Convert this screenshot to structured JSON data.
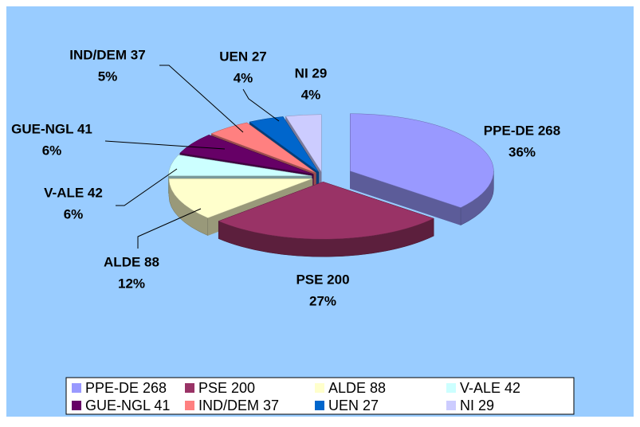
{
  "chart_data": {
    "type": "pie",
    "categories": [
      "PPE-DE 268",
      "PSE 200",
      "ALDE 88",
      "V-ALE 42",
      "GUE-NGL 41",
      "IND/DEM 37",
      "UEN 27",
      "NI 29"
    ],
    "values": [
      36,
      27,
      12,
      6,
      6,
      5,
      4,
      4
    ],
    "value_labels": [
      "36%",
      "27%",
      "12%",
      "6%",
      "6%",
      "5%",
      "4%",
      "4%"
    ],
    "colors": [
      "#9999ff",
      "#993366",
      "#ffffcc",
      "#ccffff",
      "#660066",
      "#ff8080",
      "#0066cc",
      "#ccccff"
    ],
    "legend": "bottom"
  }
}
